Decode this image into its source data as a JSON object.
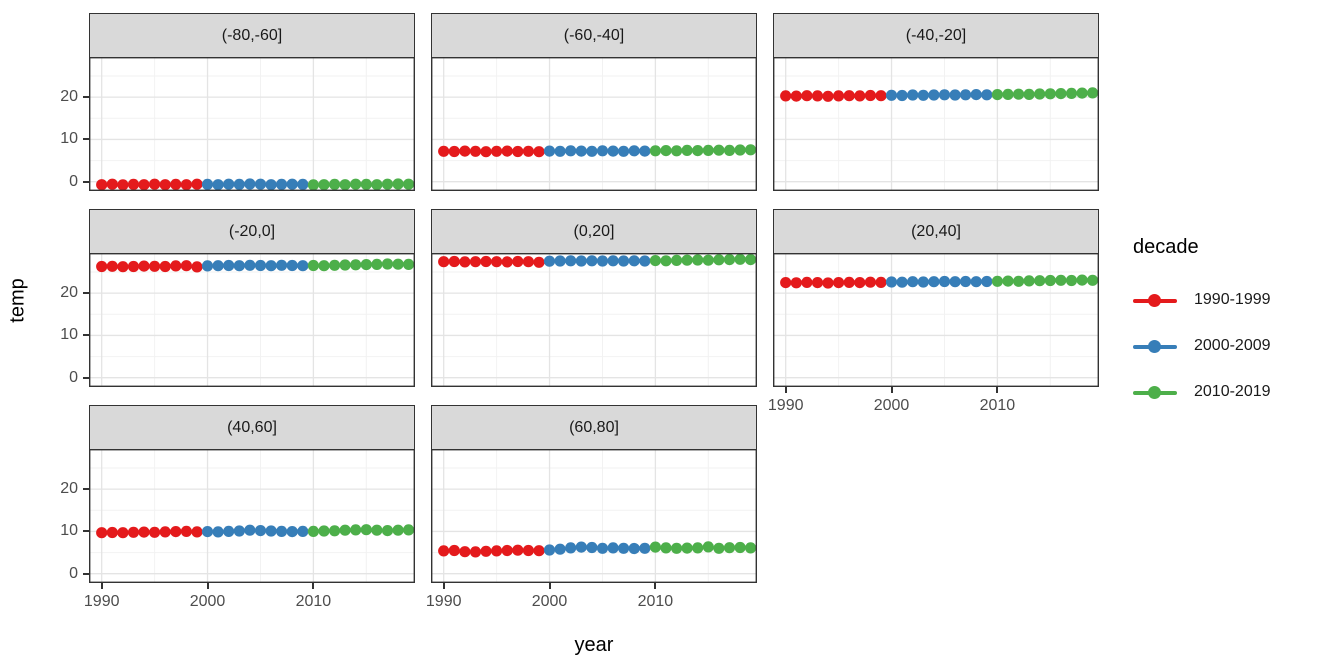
{
  "figure": {
    "x_axis_title": "year",
    "y_axis_title": "temp"
  },
  "legend": {
    "title": "decade",
    "items": [
      {
        "label": "1990-1999",
        "color": "#E41A1C"
      },
      {
        "label": "2000-2009",
        "color": "#377EB8"
      },
      {
        "label": "2010-2019",
        "color": "#4DAF4A"
      }
    ]
  },
  "colors": {
    "strip_fill": "#d9d9d9",
    "panel_border": "#333333",
    "grid_major": "#e4e4e4",
    "grid_minor": "#f2f2f2",
    "tick_text": "#4d4d4d"
  },
  "chart_data": {
    "type": "scatter",
    "title": "",
    "xlabel": "year",
    "ylabel": "temp",
    "legend_title": "decade",
    "legend_position": "right",
    "grid": true,
    "x": [
      1990,
      1991,
      1992,
      1993,
      1994,
      1995,
      1996,
      1997,
      1998,
      1999,
      2000,
      2001,
      2002,
      2003,
      2004,
      2005,
      2006,
      2007,
      2008,
      2009,
      2010,
      2011,
      2012,
      2013,
      2014,
      2015,
      2016,
      2017,
      2018,
      2019
    ],
    "x_ticks": [
      1990,
      2000,
      2010
    ],
    "x_minor_ticks": [
      1995,
      2005,
      2015
    ],
    "y_ticks": [
      0,
      10,
      20
    ],
    "y_minor_ticks": [
      5,
      15,
      25
    ],
    "xlim": [
      1988.8,
      2019.6
    ],
    "ylim": [
      -2.2,
      29.5
    ],
    "decade_of_point": "floor((year-1990)/10): 0=1990-1999 red, 1=2000-2009 blue, 2=2010-2019 green",
    "facets": [
      {
        "label": "(-80,-60]",
        "values": [
          -0.7,
          -0.6,
          -0.75,
          -0.65,
          -0.7,
          -0.6,
          -0.7,
          -0.65,
          -0.7,
          -0.6,
          -0.65,
          -0.7,
          -0.6,
          -0.65,
          -0.55,
          -0.6,
          -0.7,
          -0.65,
          -0.6,
          -0.65,
          -0.75,
          -0.7,
          -0.65,
          -0.7,
          -0.6,
          -0.65,
          -0.7,
          -0.6,
          -0.55,
          -0.6
        ]
      },
      {
        "label": "(-60,-40]",
        "values": [
          7.2,
          7.15,
          7.25,
          7.2,
          7.1,
          7.2,
          7.25,
          7.15,
          7.2,
          7.1,
          7.25,
          7.2,
          7.3,
          7.25,
          7.2,
          7.3,
          7.25,
          7.2,
          7.3,
          7.25,
          7.3,
          7.35,
          7.3,
          7.4,
          7.35,
          7.4,
          7.45,
          7.4,
          7.5,
          7.55
        ]
      },
      {
        "label": "(-40,-20]",
        "values": [
          20.3,
          20.25,
          20.35,
          20.3,
          20.2,
          20.3,
          20.35,
          20.3,
          20.4,
          20.35,
          20.45,
          20.4,
          20.5,
          20.45,
          20.5,
          20.55,
          20.5,
          20.55,
          20.6,
          20.55,
          20.6,
          20.65,
          20.7,
          20.65,
          20.75,
          20.8,
          20.85,
          20.9,
          20.95,
          21.0
        ]
      },
      {
        "label": "(-20,0]",
        "values": [
          26.3,
          26.35,
          26.25,
          26.3,
          26.4,
          26.35,
          26.3,
          26.45,
          26.5,
          26.2,
          26.45,
          26.5,
          26.55,
          26.5,
          26.6,
          26.55,
          26.5,
          26.6,
          26.55,
          26.5,
          26.55,
          26.5,
          26.6,
          26.65,
          26.7,
          26.75,
          26.8,
          26.9,
          26.85,
          26.8
        ]
      },
      {
        "label": "(0,20]",
        "values": [
          27.45,
          27.5,
          27.4,
          27.45,
          27.5,
          27.45,
          27.4,
          27.5,
          27.45,
          27.3,
          27.55,
          27.6,
          27.65,
          27.6,
          27.65,
          27.6,
          27.65,
          27.6,
          27.65,
          27.6,
          27.7,
          27.65,
          27.75,
          27.8,
          27.85,
          27.8,
          27.9,
          27.95,
          28.0,
          27.95
        ]
      },
      {
        "label": "(20,40]",
        "values": [
          22.5,
          22.45,
          22.55,
          22.5,
          22.4,
          22.5,
          22.55,
          22.5,
          22.6,
          22.55,
          22.65,
          22.6,
          22.7,
          22.65,
          22.7,
          22.75,
          22.7,
          22.75,
          22.7,
          22.75,
          22.8,
          22.85,
          22.8,
          22.9,
          22.95,
          23.0,
          23.05,
          23.0,
          23.1,
          23.05
        ]
      },
      {
        "label": "(40,60]",
        "values": [
          9.7,
          9.75,
          9.7,
          9.8,
          9.85,
          9.8,
          9.9,
          9.95,
          10.0,
          9.9,
          9.95,
          9.9,
          10.0,
          10.1,
          10.3,
          10.2,
          10.1,
          10.0,
          9.95,
          10.0,
          10.0,
          10.1,
          10.15,
          10.3,
          10.35,
          10.4,
          10.3,
          10.2,
          10.3,
          10.35
        ]
      },
      {
        "label": "(60,80]",
        "values": [
          5.4,
          5.5,
          5.2,
          5.15,
          5.3,
          5.4,
          5.5,
          5.55,
          5.5,
          5.45,
          5.6,
          5.8,
          6.1,
          6.3,
          6.2,
          6.0,
          6.1,
          6.0,
          5.95,
          6.0,
          6.3,
          6.1,
          6.0,
          6.05,
          6.1,
          6.35,
          6.0,
          6.15,
          6.2,
          6.1
        ]
      }
    ]
  }
}
